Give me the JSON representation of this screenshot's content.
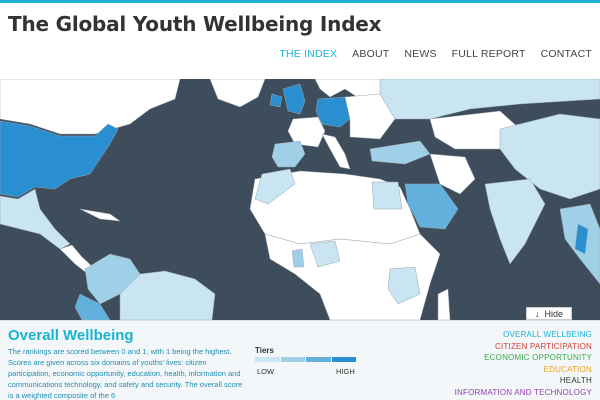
{
  "site": {
    "title": "The Global Youth Wellbeing Index"
  },
  "nav": {
    "items": [
      {
        "label": "THE INDEX",
        "active": true
      },
      {
        "label": "ABOUT"
      },
      {
        "label": "NEWS"
      },
      {
        "label": "FULL REPORT"
      },
      {
        "label": "CONTACT"
      }
    ]
  },
  "colors": {
    "accent": "#1ab3d3",
    "ocean": "#3e4d5c",
    "tier_1": "#c9e5f1",
    "tier_2": "#9fd0e8",
    "tier_3": "#62b1dd",
    "tier_4": "#2a8fd1"
  },
  "map": {
    "hide_button": {
      "icon": "download-arrow-icon",
      "label": "Hide"
    }
  },
  "panel": {
    "title": "Overall Wellbeing",
    "description": "The rankings are scored between 0 and 1, with 1 being the highest. Scores are given across six domains of youths' lives: citizen participation, economic opportunity, education, health, information and communications technology, and safety and security. The overall score is a weighted composite of the 6",
    "tiers": {
      "label": "Tiers",
      "low": "LOW",
      "high": "HIGH",
      "colors": [
        "#c9e5f1",
        "#9fd0e8",
        "#62b1dd",
        "#2a8fd1"
      ]
    },
    "domains": [
      {
        "label": "OVERALL WELLBEING",
        "color": "#1ab3d3"
      },
      {
        "label": "CITIZEN PARTICIPATION",
        "color": "#d0403b"
      },
      {
        "label": "ECONOMIC OPPORTUNITY",
        "color": "#3aa84a"
      },
      {
        "label": "EDUCATION",
        "color": "#e8a31c"
      },
      {
        "label": "HEALTH",
        "color": "#333333"
      },
      {
        "label": "INFORMATION AND TECHNOLOGY",
        "color": "#8e44ad"
      }
    ]
  }
}
